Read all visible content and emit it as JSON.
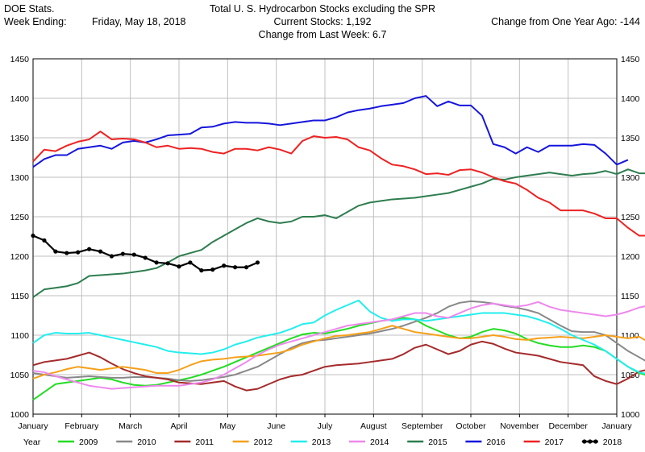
{
  "header": {
    "left_line1": "DOE Stats.",
    "left_line2_label": "Week Ending:",
    "week_ending": "Friday, May 18, 2018",
    "title": "Total U. S. Hydrocarbon Stocks excluding the SPR",
    "current_stocks": "Current Stocks:   1,192",
    "change_last_week": "Change from Last Week:   6.7",
    "change_year_ago": "Change from One Year Ago:  -144"
  },
  "chart_data": {
    "type": "line",
    "title": "Total U. S. Hydrocarbon Stocks excluding the SPR",
    "xlabel": "",
    "ylabel": "",
    "ylim": [
      1000,
      1450
    ],
    "yticks": [
      1000,
      1050,
      1100,
      1150,
      1200,
      1250,
      1300,
      1350,
      1400,
      1450
    ],
    "x_unit": "week of year",
    "xlim": [
      0,
      52
    ],
    "month_labels": [
      "January",
      "February",
      "March",
      "April",
      "May",
      "June",
      "July",
      "August",
      "September",
      "October",
      "November",
      "December",
      "January"
    ],
    "grid": true,
    "legend_title": "Year",
    "legend_position": "bottom",
    "series": [
      {
        "name": "2009",
        "color": "#22dd22",
        "values": [
          1018,
          1028,
          1038,
          1040,
          1042,
          1044,
          1046,
          1044,
          1040,
          1037,
          1036,
          1037,
          1040,
          1043,
          1046,
          1050,
          1055,
          1060,
          1066,
          1072,
          1078,
          1084,
          1090,
          1096,
          1101,
          1103,
          1102,
          1105,
          1108,
          1112,
          1115,
          1118,
          1120,
          1122,
          1120,
          1112,
          1106,
          1100,
          1096,
          1098,
          1104,
          1108,
          1106,
          1102,
          1095,
          1090,
          1087,
          1085,
          1085,
          1087,
          1085,
          1080,
          1070,
          1060,
          1052,
          1048
        ]
      },
      {
        "name": "2010",
        "color": "#888888",
        "values": [
          1052,
          1050,
          1048,
          1046,
          1047,
          1048,
          1047,
          1046,
          1046,
          1047,
          1047,
          1046,
          1045,
          1043,
          1042,
          1043,
          1045,
          1047,
          1050,
          1055,
          1060,
          1068,
          1076,
          1084,
          1090,
          1093,
          1094,
          1096,
          1098,
          1100,
          1102,
          1105,
          1108,
          1112,
          1117,
          1122,
          1128,
          1136,
          1141,
          1143,
          1142,
          1140,
          1137,
          1135,
          1132,
          1128,
          1120,
          1112,
          1105,
          1104,
          1104,
          1100,
          1090,
          1080,
          1072,
          1064
        ]
      },
      {
        "name": "2011",
        "color": "#a52a2a",
        "values": [
          1062,
          1066,
          1068,
          1070,
          1074,
          1078,
          1072,
          1064,
          1057,
          1052,
          1048,
          1046,
          1044,
          1040,
          1039,
          1038,
          1040,
          1042,
          1035,
          1030,
          1032,
          1038,
          1044,
          1048,
          1050,
          1055,
          1060,
          1062,
          1063,
          1064,
          1066,
          1068,
          1070,
          1076,
          1084,
          1088,
          1082,
          1076,
          1080,
          1088,
          1092,
          1089,
          1083,
          1078,
          1076,
          1074,
          1070,
          1066,
          1064,
          1062,
          1048,
          1042,
          1038,
          1045,
          1054,
          1057,
          1038,
          1042,
          1046
        ]
      },
      {
        "name": "2012",
        "color": "#f5a01a",
        "values": [
          1045,
          1050,
          1053,
          1057,
          1060,
          1058,
          1056,
          1058,
          1060,
          1058,
          1056,
          1052,
          1052,
          1056,
          1062,
          1067,
          1069,
          1070,
          1072,
          1073,
          1074,
          1076,
          1078,
          1082,
          1088,
          1092,
          1096,
          1099,
          1100,
          1102,
          1104,
          1108,
          1112,
          1108,
          1104,
          1102,
          1100,
          1098,
          1096,
          1096,
          1098,
          1100,
          1098,
          1095,
          1094,
          1096,
          1097,
          1098,
          1097,
          1096,
          1098,
          1100,
          1098,
          1096,
          1098,
          1090
        ]
      },
      {
        "name": "2013",
        "color": "#22eeee",
        "values": [
          1090,
          1100,
          1103,
          1102,
          1102,
          1103,
          1100,
          1097,
          1094,
          1091,
          1088,
          1085,
          1080,
          1078,
          1077,
          1076,
          1078,
          1082,
          1088,
          1092,
          1097,
          1100,
          1103,
          1108,
          1114,
          1116,
          1125,
          1132,
          1138,
          1144,
          1130,
          1122,
          1118,
          1120,
          1120,
          1118,
          1120,
          1122,
          1124,
          1126,
          1128,
          1128,
          1128,
          1126,
          1124,
          1120,
          1115,
          1108,
          1100,
          1094,
          1088,
          1080,
          1070,
          1060,
          1053,
          1050
        ]
      },
      {
        "name": "2014",
        "color": "#ee88ee",
        "values": [
          1055,
          1053,
          1048,
          1044,
          1040,
          1036,
          1034,
          1032,
          1033,
          1034,
          1035,
          1036,
          1036,
          1036,
          1038,
          1040,
          1044,
          1050,
          1058,
          1066,
          1075,
          1082,
          1088,
          1092,
          1096,
          1100,
          1104,
          1108,
          1112,
          1114,
          1116,
          1118,
          1120,
          1124,
          1128,
          1128,
          1124,
          1122,
          1128,
          1134,
          1138,
          1140,
          1138,
          1136,
          1138,
          1142,
          1136,
          1132,
          1130,
          1128,
          1126,
          1124,
          1126,
          1130,
          1135,
          1138
        ]
      },
      {
        "name": "2015",
        "color": "#2e7d4f",
        "values": [
          1148,
          1158,
          1160,
          1162,
          1166,
          1175,
          1176,
          1177,
          1178,
          1180,
          1182,
          1185,
          1192,
          1200,
          1204,
          1208,
          1218,
          1226,
          1234,
          1242,
          1248,
          1244,
          1242,
          1244,
          1250,
          1250,
          1252,
          1248,
          1256,
          1264,
          1268,
          1270,
          1272,
          1273,
          1274,
          1276,
          1278,
          1280,
          1284,
          1288,
          1292,
          1298,
          1297,
          1300,
          1302,
          1304,
          1306,
          1304,
          1302,
          1304,
          1305,
          1308,
          1304,
          1310,
          1305,
          1305,
          1312
        ]
      },
      {
        "name": "2016",
        "color": "#1515dd",
        "values": [
          1313,
          1323,
          1328,
          1328,
          1336,
          1338,
          1340,
          1336,
          1344,
          1346,
          1344,
          1348,
          1353,
          1354,
          1355,
          1363,
          1364,
          1368,
          1370,
          1369,
          1369,
          1368,
          1366,
          1368,
          1370,
          1372,
          1372,
          1376,
          1382,
          1385,
          1387,
          1390,
          1392,
          1394,
          1400,
          1403,
          1390,
          1396,
          1391,
          1391,
          1378,
          1342,
          1338,
          1330,
          1338,
          1332,
          1340,
          1340,
          1340,
          1342,
          1341,
          1330,
          1316,
          1322
        ]
      },
      {
        "name": "2017",
        "color": "#ee2222",
        "values": [
          1320,
          1335,
          1333,
          1340,
          1345,
          1348,
          1358,
          1348,
          1349,
          1348,
          1344,
          1338,
          1340,
          1336,
          1337,
          1336,
          1332,
          1330,
          1336,
          1336,
          1334,
          1338,
          1335,
          1330,
          1346,
          1352,
          1350,
          1351,
          1348,
          1338,
          1334,
          1324,
          1316,
          1314,
          1310,
          1304,
          1305,
          1303,
          1309,
          1310,
          1306,
          1300,
          1295,
          1292,
          1284,
          1274,
          1268,
          1258,
          1258,
          1258,
          1254,
          1248,
          1248,
          1236,
          1226,
          1226
        ]
      },
      {
        "name": "2018",
        "color": "#000000",
        "values": [
          1226,
          1220,
          1206,
          1204,
          1205,
          1209,
          1206,
          1200,
          1203,
          1202,
          1198,
          1192,
          1191,
          1187,
          1192,
          1182,
          1183,
          1188,
          1186,
          1186,
          1192
        ]
      }
    ]
  }
}
